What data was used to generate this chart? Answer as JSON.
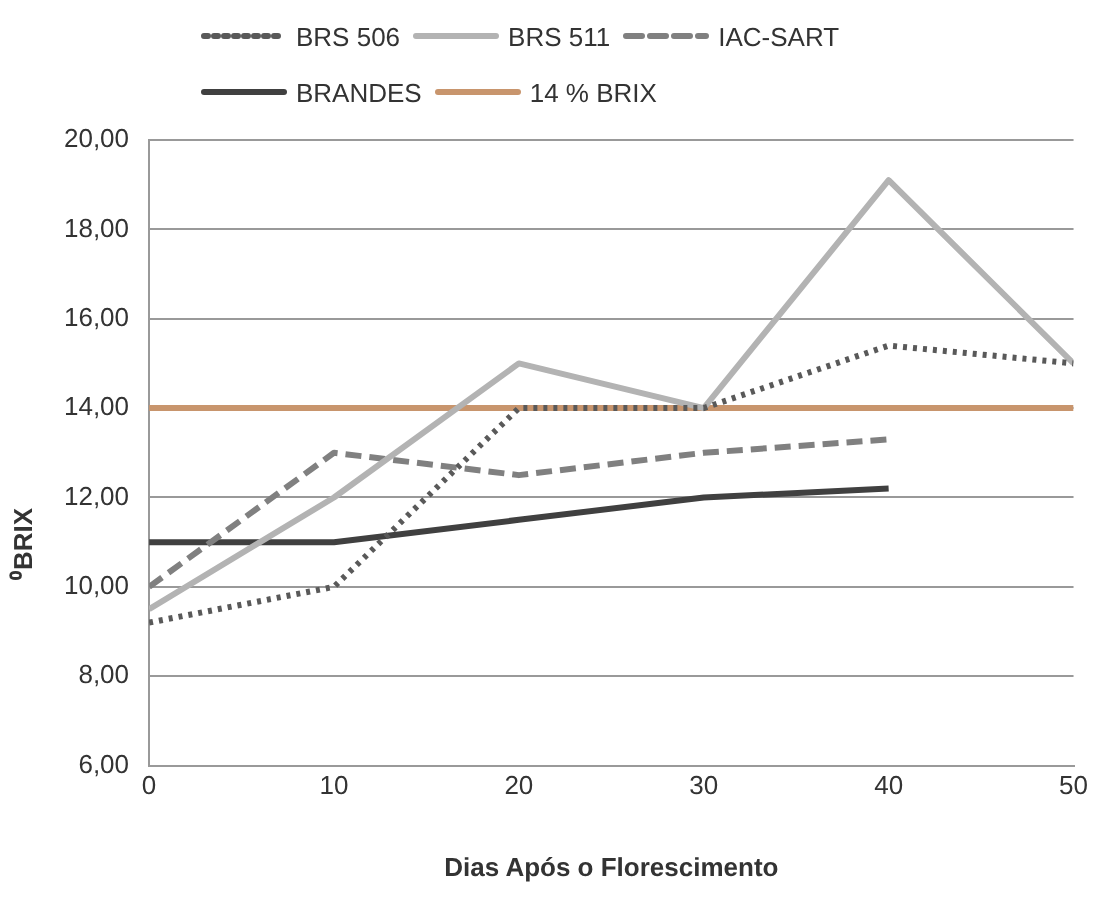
{
  "chart_data": {
    "type": "line",
    "xlabel": "Dias Após o Florescimento",
    "ylabel": "⁰BRIX",
    "x": [
      0,
      10,
      20,
      30,
      40,
      50
    ],
    "series": [
      {
        "name": "BRS 506",
        "color": "#595959",
        "line_style": "dotted",
        "values": [
          9.2,
          10,
          14,
          14,
          15.4,
          15.0
        ]
      },
      {
        "name": "BRS 511",
        "color": "#b3b3b3",
        "line_style": "solid",
        "values": [
          9.5,
          12,
          15,
          14,
          19.1,
          15.0
        ]
      },
      {
        "name": "IAC-SART",
        "color": "#808080",
        "line_style": "dashed",
        "values": [
          10,
          13,
          12.5,
          13,
          13.3,
          null
        ]
      },
      {
        "name": "BRANDES",
        "color": "#404040",
        "line_style": "solid",
        "values": [
          11,
          11,
          11.5,
          12,
          12.2,
          null
        ]
      },
      {
        "name": "14 % BRIX",
        "color": "#c8956d",
        "line_style": "solid",
        "values": [
          14,
          14,
          14,
          14,
          14,
          14
        ]
      }
    ],
    "xlim": [
      0,
      50
    ],
    "xticks": [
      0,
      10,
      20,
      30,
      40,
      50
    ],
    "ylim": [
      6,
      20
    ],
    "yticks": [
      {
        "value": 6,
        "label": "6,00"
      },
      {
        "value": 8,
        "label": "8,00"
      },
      {
        "value": 10,
        "label": "10,00"
      },
      {
        "value": 12,
        "label": "12,00"
      },
      {
        "value": 14,
        "label": "14,00"
      },
      {
        "value": 16,
        "label": "16,00"
      },
      {
        "value": 18,
        "label": "18,00"
      },
      {
        "value": 20,
        "label": "20,00"
      }
    ],
    "grid": "y",
    "legend": "top",
    "marker": "none"
  }
}
